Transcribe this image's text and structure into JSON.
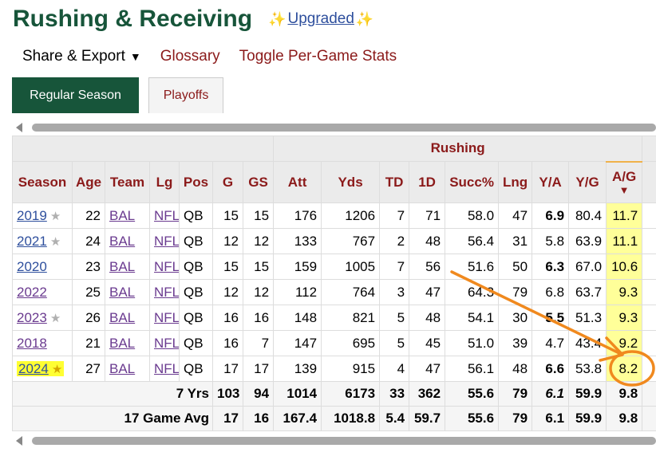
{
  "header": {
    "title": "Rushing & Receiving",
    "upgraded": "Upgraded",
    "sparkle_glyph": "✨"
  },
  "menu": {
    "share_export": "Share & Export",
    "caret": "▼",
    "glossary": "Glossary",
    "toggle": "Toggle Per-Game Stats"
  },
  "tabs": {
    "regular": "Regular Season",
    "playoffs": "Playoffs"
  },
  "table": {
    "over_header": "Rushing",
    "columns": [
      "Season",
      "Age",
      "Team",
      "Lg",
      "Pos",
      "G",
      "GS",
      "Att",
      "Yds",
      "TD",
      "1D",
      "Succ%",
      "Lng",
      "Y/A",
      "Y/G",
      "A/G"
    ],
    "sort_arrow": "▼",
    "star_glyph": "★",
    "rows": [
      {
        "season": "2019",
        "age": "22",
        "team": "BAL",
        "lg": "NFL",
        "pos": "QB",
        "g": "15",
        "gs": "15",
        "att": "176",
        "yds": "1206",
        "td": "7",
        "fd": "71",
        "succ": "58.0",
        "lng": "47",
        "ya": "6.9",
        "yg": "80.4",
        "ag": "11.7",
        "ya_bold": true
      },
      {
        "season": "2021",
        "age": "24",
        "team": "BAL",
        "lg": "NFL",
        "pos": "QB",
        "g": "12",
        "gs": "12",
        "att": "133",
        "yds": "767",
        "td": "2",
        "fd": "48",
        "succ": "56.4",
        "lng": "31",
        "ya": "5.8",
        "yg": "63.9",
        "ag": "11.1",
        "ya_bold": false
      },
      {
        "season": "2020",
        "age": "23",
        "team": "BAL",
        "lg": "NFL",
        "pos": "QB",
        "g": "15",
        "gs": "15",
        "att": "159",
        "yds": "1005",
        "td": "7",
        "fd": "56",
        "succ": "51.6",
        "lng": "50",
        "ya": "6.3",
        "yg": "67.0",
        "ag": "10.6",
        "ya_bold": true
      },
      {
        "season": "2022",
        "age": "25",
        "team": "BAL",
        "lg": "NFL",
        "pos": "QB",
        "g": "12",
        "gs": "12",
        "att": "112",
        "yds": "764",
        "td": "3",
        "fd": "47",
        "succ": "64.3",
        "lng": "79",
        "ya": "6.8",
        "yg": "63.7",
        "ag": "9.3",
        "ya_bold": false
      },
      {
        "season": "2023",
        "age": "26",
        "team": "BAL",
        "lg": "NFL",
        "pos": "QB",
        "g": "16",
        "gs": "16",
        "att": "148",
        "yds": "821",
        "td": "5",
        "fd": "48",
        "succ": "54.1",
        "lng": "30",
        "ya": "5.5",
        "yg": "51.3",
        "ag": "9.3",
        "ya_bold": true
      },
      {
        "season": "2018",
        "age": "21",
        "team": "BAL",
        "lg": "NFL",
        "pos": "QB",
        "g": "16",
        "gs": "7",
        "att": "147",
        "yds": "695",
        "td": "5",
        "fd": "45",
        "succ": "51.0",
        "lng": "39",
        "ya": "4.7",
        "yg": "43.4",
        "ag": "9.2",
        "ya_bold": false
      },
      {
        "season": "2024",
        "age": "27",
        "team": "BAL",
        "lg": "NFL",
        "pos": "QB",
        "g": "17",
        "gs": "17",
        "att": "139",
        "yds": "915",
        "td": "4",
        "fd": "47",
        "succ": "56.1",
        "lng": "48",
        "ya": "6.6",
        "yg": "53.8",
        "ag": "8.2",
        "ya_bold": true
      }
    ],
    "totals": {
      "label": "7 Yrs",
      "g": "103",
      "gs": "94",
      "att": "1014",
      "yds": "6173",
      "td": "33",
      "fd": "362",
      "succ": "55.6",
      "lng": "79",
      "ya": "6.1",
      "yg": "59.9",
      "ag": "9.8"
    },
    "avg": {
      "label": "17 Game Avg",
      "g": "17",
      "gs": "16",
      "att": "167.4",
      "yds": "1018.8",
      "td": "5.4",
      "fd": "59.7",
      "succ": "55.6",
      "lng": "79",
      "ya": "6.1",
      "yg": "59.9",
      "ag": "9.8"
    }
  },
  "colors": {
    "title_green": "#17553a",
    "header_red": "#8b1a1a",
    "link_blue": "#2e4f9d",
    "link_purple": "#6a3a8f",
    "sort_highlight": "#ffff99",
    "annotation_orange": "#f0891e"
  }
}
